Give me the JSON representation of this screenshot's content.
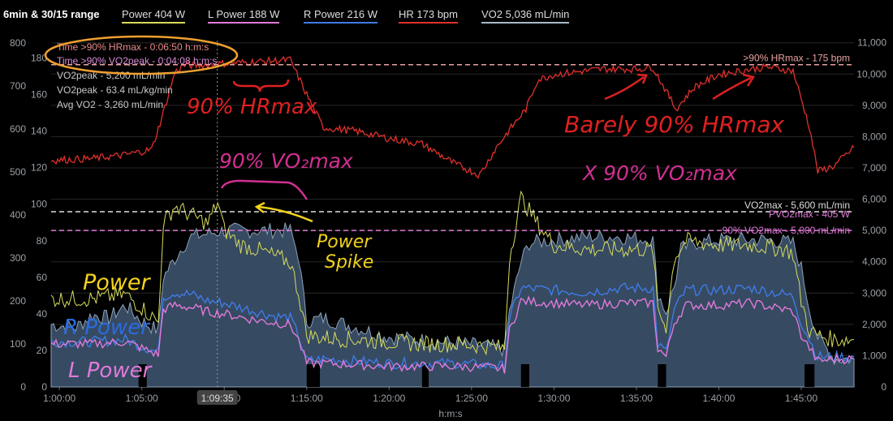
{
  "header": {
    "title": "6min & 30/15 range",
    "legend": [
      {
        "label": "Power  404 W",
        "color": "#d7dc5a"
      },
      {
        "label": "L Power  188 W",
        "color": "#e07ad8"
      },
      {
        "label": "R Power  216 W",
        "color": "#3f7be6"
      },
      {
        "label": "HR  173 bpm",
        "color": "#e0302c"
      },
      {
        "label": "VO2  5,036 mL/min",
        "color": "#a9b9c9"
      }
    ]
  },
  "stats": {
    "line1": "Time >90% HRmax - 0:06:50 h:m:s",
    "line2": "Time >90% VO2peak - 0:04:08 h:m:s",
    "line3": "VO2peak - 5,200 mL/min",
    "line4": "VO2peak - 63.4 mL/kg/min",
    "line5": "Avg VO2 - 3,260 mL/min"
  },
  "annotations": {
    "hr90": "90% HRmax",
    "barely": "Barely 90% HRmax",
    "vo2": "90% VO₂max",
    "xvo2": "X 90% VO₂max",
    "spike1": "Power",
    "spike2": "Spike",
    "power": "Power",
    "rpower": "R Power",
    "lpower": "L Power"
  },
  "cursor_label": "1:09:35",
  "chart_data": {
    "type": "line",
    "xlabel": "h:m:s",
    "x_ticks": [
      "1:00:00",
      "1:05:00",
      "1:10:00",
      "1:15:00",
      "1:20:00",
      "1:25:00",
      "1:30:00",
      "1:35:00",
      "1:40:00",
      "1:45:00"
    ],
    "x_range_min": [
      59.5,
      108.2
    ],
    "cursor_min": 69.58,
    "y_power": {
      "ticks": [
        "0",
        "100",
        "200",
        "300",
        "400",
        "500",
        "600",
        "700",
        "800"
      ],
      "range": [
        0,
        800
      ]
    },
    "y_hr": {
      "ticks": [
        "0",
        "20",
        "40",
        "60",
        "80",
        "100",
        "120",
        "140",
        "160",
        "180"
      ],
      "range": [
        0,
        190
      ]
    },
    "y_vo2": {
      "ticks": [
        "0",
        "1,000",
        "2,000",
        "3,000",
        "4,000",
        "5,000",
        "6,000",
        "7,000",
        "8,000",
        "9,000",
        "10,000",
        "11,000"
      ],
      "range": [
        0,
        11200
      ]
    },
    "reference_lines": [
      {
        "label": ">90% HRmax - 175 bpm",
        "axis": "vo2",
        "value": 10300,
        "color": "#e8a0a0"
      },
      {
        "label": "VO2max - 5,600 mL/min",
        "axis": "vo2",
        "value": 5600,
        "color": "#dddddd"
      },
      {
        "label": "PVO2max - 405 W",
        "axis": "vo2",
        "value": 5000,
        "color": "#e07ad8"
      },
      {
        "label": "90% VO2max - 5,000 mL/min",
        "axis": "vo2",
        "value": 5000,
        "color": "#e07ad8"
      }
    ],
    "series": [
      {
        "name": "HR",
        "axis": "hr",
        "color": "#e0302c",
        "x": [
          59.5,
          62,
          64,
          65.6,
          66.3,
          67,
          67.5,
          68.5,
          70,
          72,
          74,
          75,
          76,
          78,
          80,
          82,
          84,
          85.5,
          86.5,
          87.5,
          88.3,
          89,
          90,
          93,
          95,
          96,
          96.8,
          97.4,
          98.5,
          100,
          102,
          103,
          104.5,
          105.5,
          106,
          107,
          108.2
        ],
        "y": [
          124,
          125,
          127,
          130,
          150,
          172,
          176,
          176,
          177,
          178,
          179,
          160,
          142,
          140,
          136,
          133,
          122,
          116,
          131,
          143,
          152,
          168,
          171,
          174,
          174,
          175,
          162,
          152,
          164,
          171,
          174,
          175,
          173,
          142,
          118,
          121,
          131
        ]
      },
      {
        "name": "VO2",
        "axis": "vo2",
        "color": "#a9b9c9",
        "x": [
          59.5,
          61,
          62,
          63,
          64,
          65,
          66,
          66.3,
          67,
          67.5,
          68,
          70,
          72,
          74,
          74.5,
          75,
          76,
          78,
          80,
          82,
          84,
          86,
          87,
          87.3,
          88,
          88.5,
          90,
          92,
          94,
          96,
          96.3,
          96.8,
          97.3,
          97.7,
          98.5,
          100,
          102,
          103,
          104.5,
          105,
          105.5,
          106,
          107,
          108.2
        ],
        "y": [
          2000,
          1900,
          2300,
          2200,
          2600,
          2100,
          1800,
          3500,
          4100,
          4500,
          4800,
          5000,
          5000,
          5000,
          4200,
          2100,
          2200,
          1900,
          1600,
          1500,
          1400,
          1300,
          1200,
          2400,
          4000,
          4600,
          4700,
          4800,
          4800,
          4700,
          3000,
          2400,
          3200,
          4400,
          4600,
          4700,
          4700,
          4700,
          4600,
          3800,
          2500,
          1600,
          900,
          900
        ]
      },
      {
        "name": "R Power",
        "axis": "power",
        "color": "#3f7be6",
        "x": [
          59.5,
          62,
          64,
          65,
          66,
          66.3,
          67,
          68,
          69,
          70,
          72,
          73,
          74,
          74.5,
          75,
          76,
          78,
          80,
          82,
          84,
          86,
          87,
          87.3,
          88,
          90,
          92,
          94,
          96,
          96.3,
          96.8,
          97.3,
          98,
          100,
          102,
          104,
          104.5,
          105,
          105.5,
          106,
          107,
          108.2
        ],
        "y": [
          105,
          105,
          110,
          95,
          80,
          210,
          220,
          215,
          200,
          195,
          175,
          165,
          160,
          120,
          60,
          65,
          60,
          55,
          55,
          55,
          50,
          48,
          160,
          230,
          225,
          220,
          230,
          230,
          100,
          80,
          180,
          225,
          225,
          230,
          215,
          210,
          150,
          110,
          70,
          70,
          70
        ]
      },
      {
        "name": "L Power",
        "axis": "power",
        "color": "#e07ad8",
        "x": [
          59.5,
          62,
          64,
          65,
          66,
          66.3,
          67,
          68,
          69,
          70,
          72,
          73,
          74,
          74.5,
          75,
          76,
          78,
          80,
          82,
          84,
          86,
          87,
          87.3,
          88,
          90,
          92,
          94,
          96,
          96.3,
          96.8,
          97.3,
          98,
          100,
          102,
          104,
          104.5,
          105,
          105.5,
          106,
          107,
          108.2
        ],
        "y": [
          100,
          100,
          105,
          90,
          75,
          180,
          190,
          185,
          175,
          170,
          155,
          150,
          145,
          110,
          55,
          55,
          52,
          48,
          48,
          48,
          45,
          42,
          130,
          200,
          195,
          190,
          195,
          195,
          90,
          70,
          150,
          190,
          190,
          195,
          180,
          175,
          120,
          90,
          60,
          65,
          65
        ]
      },
      {
        "name": "Power",
        "axis": "power",
        "color": "#d7dc5a",
        "x": [
          59.5,
          62,
          64,
          65,
          66,
          66.3,
          67,
          68,
          69,
          69.6,
          70,
          71,
          72,
          73,
          74,
          74.5,
          75,
          76,
          78,
          80,
          82,
          84,
          86,
          87,
          87.3,
          88,
          89,
          90,
          92,
          94,
          96,
          96.3,
          96.8,
          97.3,
          98,
          100,
          102,
          104,
          104.5,
          105,
          105.5,
          106,
          107,
          108.2
        ],
        "y": [
          205,
          205,
          215,
          185,
          150,
          380,
          420,
          400,
          380,
          430,
          365,
          330,
          320,
          305,
          290,
          220,
          120,
          115,
          110,
          105,
          100,
          100,
          95,
          90,
          300,
          440,
          380,
          330,
          320,
          320,
          320,
          180,
          140,
          300,
          340,
          330,
          330,
          320,
          310,
          200,
          130,
          120,
          110,
          110
        ]
      }
    ]
  }
}
